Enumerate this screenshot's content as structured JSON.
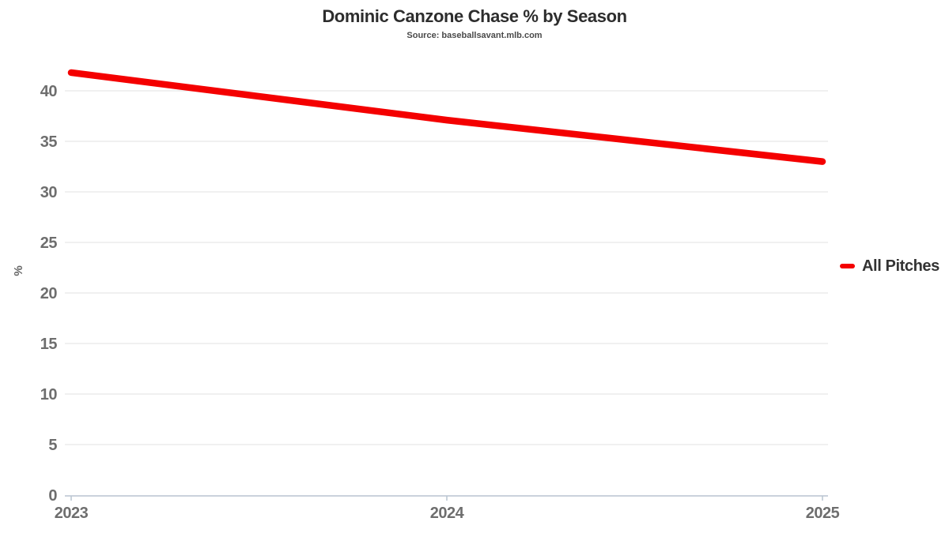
{
  "header": {
    "title": "Dominic Canzone Chase % by Season",
    "subtitle": "Source: baseballsavant.mlb.com"
  },
  "chart_data": {
    "type": "line",
    "title": "Dominic Canzone Chase % by Season",
    "subtitle": "Source: baseballsavant.mlb.com",
    "x": [
      2023,
      2024,
      2025
    ],
    "series": [
      {
        "name": "All Pitches",
        "values": [
          41.8,
          37.1,
          33.0
        ],
        "color": "#f40000"
      }
    ],
    "xlabel": "",
    "ylabel": "%",
    "ylim": [
      0,
      44
    ],
    "yticks": [
      0,
      5,
      10,
      15,
      20,
      25,
      30,
      35,
      40
    ],
    "grid": true,
    "legend_position": "right",
    "colors": {
      "grid": "#ececec",
      "axis": "#b9c4d1",
      "tick_text": "#6e6e6e",
      "title_text": "#2d2d2d"
    }
  }
}
